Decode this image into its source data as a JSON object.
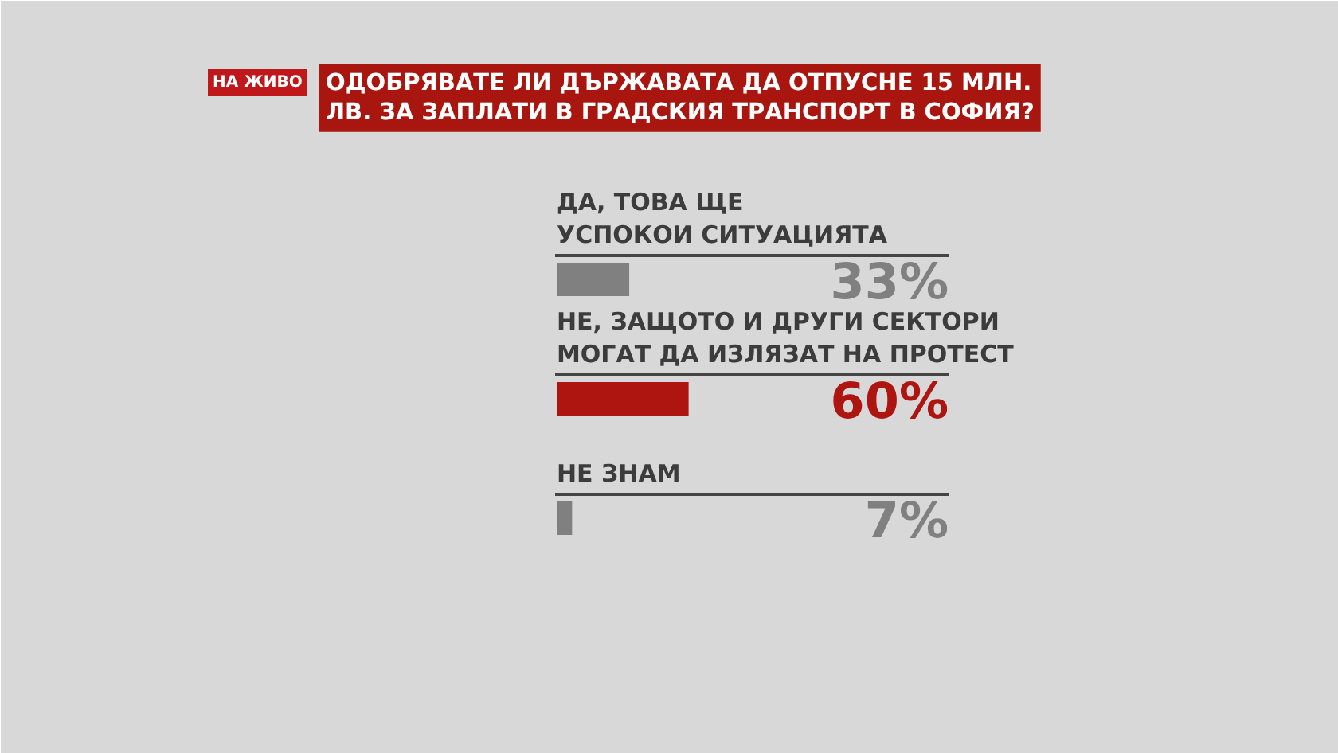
{
  "chart_data": {
    "type": "bar",
    "orientation": "horizontal",
    "title": "ОДОБРЯВАТЕ ЛИ ДЪРЖАВАТА ДА ОТПУСНЕ 15 МЛН.\nЛВ. ЗА ЗАПЛАТИ В ГРАДСКИЯ ТРАНСПОРТ В СОФИЯ?",
    "categories": [
      "ДА, ТОВА ЩЕ\nУСПОКОИ СИТУАЦИЯТА",
      "НЕ, ЗАЩОТО И ДРУГИ СЕКТОРИ\nМОГАТ ДА ИЗЛЯЗАТ НА ПРОТЕСТ",
      "НЕ ЗНАМ"
    ],
    "values": [
      33,
      60,
      7
    ],
    "value_labels": [
      "33%",
      "60%",
      "7%"
    ],
    "colors": [
      "#808080",
      "#ae1410",
      "#808080"
    ],
    "annotations": [
      "НА ЖИВО"
    ],
    "grid": false
  }
}
